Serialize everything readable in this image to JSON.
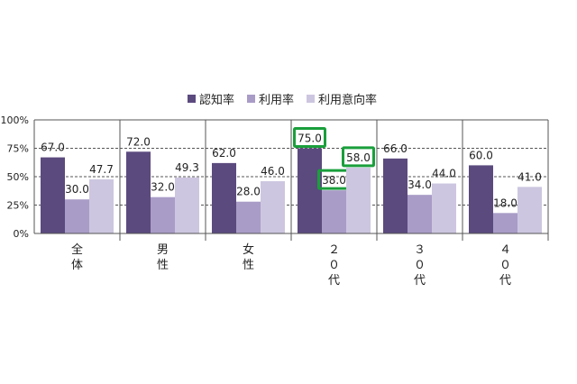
{
  "chart_data": {
    "type": "bar",
    "categories": [
      "全\n体",
      "男\n性",
      "女\n性",
      "２\n０\n代",
      "３\n０\n代",
      "４\n０\n代"
    ],
    "series": [
      {
        "name": "認知率",
        "color": "#5b4a7e",
        "values": [
          67.0,
          72.0,
          62.0,
          75.0,
          66.0,
          60.0
        ]
      },
      {
        "name": "利用率",
        "color": "#a99cc7",
        "values": [
          30.0,
          32.0,
          28.0,
          38.0,
          34.0,
          18.0
        ]
      },
      {
        "name": "利用意向率",
        "color": "#cdc6e0",
        "values": [
          47.7,
          49.3,
          46.0,
          58.0,
          44.0,
          41.0
        ]
      }
    ],
    "value_labels": [
      [
        "67.0",
        "72.0",
        "62.0",
        "75.0",
        "66.0",
        "60.0"
      ],
      [
        "30.0",
        "32.0",
        "28.0",
        "38.0",
        "34.0",
        "18.0"
      ],
      [
        "47.7",
        "49.3",
        "46.0",
        "58.0",
        "44.0",
        "41.0"
      ]
    ],
    "ylim": [
      0,
      100
    ],
    "yticks": [
      "0%",
      "25%",
      "50%",
      "75%",
      "100%"
    ],
    "grid": "dashed-horizontal",
    "legend_position": "top-center",
    "highlights": [
      [
        3,
        0
      ],
      [
        3,
        1
      ],
      [
        3,
        2
      ]
    ],
    "highlight_color": "#1a9f3c"
  }
}
